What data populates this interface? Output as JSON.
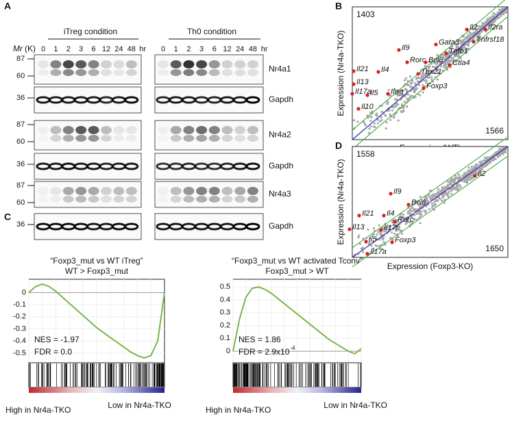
{
  "panels": {
    "A": {
      "label": "A",
      "mr": "Mr",
      "mr_unit": "(K)",
      "conditions": [
        "iTreg condition",
        "Th0 condition"
      ],
      "times": [
        "0",
        "1",
        "2",
        "3",
        "6",
        "12",
        "24",
        "48"
      ],
      "time_unit": "hr",
      "rows": [
        {
          "name": "Nr4a1",
          "markers": [
            "87",
            "60"
          ]
        },
        {
          "name": "Gapdh",
          "markers": [
            "36"
          ]
        },
        {
          "name": "Nr4a2",
          "markers": [
            "87",
            "60"
          ]
        },
        {
          "name": "Gapdh",
          "markers": [
            "36"
          ]
        },
        {
          "name": "Nr4a3",
          "markers": [
            "87",
            "60"
          ]
        },
        {
          "name": "Gapdh",
          "markers": [
            "36"
          ]
        }
      ]
    },
    "B": {
      "label": "B",
      "x_label": "Expression (WT)",
      "y_label": "Expression (Nr4a-TKO)",
      "count_top": "1403",
      "count_bottom": "1566",
      "genes": [
        "Il2",
        "Il2ra",
        "Tnfrsf18",
        "Gata3",
        "Il9",
        "Tgfb1",
        "Rorc",
        "Bcl6",
        "Ctla4",
        "Il21",
        "Il4",
        "Tbx21",
        "Il13",
        "Foxp3",
        "Il17a",
        "Il5",
        "Ifng",
        "Il10"
      ]
    },
    "C": {
      "label": "C"
    },
    "D": {
      "label": "D",
      "x_label": "Expression (Foxp3-KO)",
      "y_label": "Expression (Nr4a-TKO)",
      "count_top": "1558",
      "count_bottom": "1650",
      "genes": [
        "Il2",
        "Il9",
        "Bcl6",
        "Il21",
        "Il4",
        "Rorc",
        "Il13",
        "Il17f",
        "Foxp3",
        "Il5",
        "Il17a"
      ]
    }
  },
  "chart_data": [
    {
      "type": "line",
      "title": "“Foxp3_mut vs WT iTreg”",
      "subtitle": "WT > Foxp3_mut",
      "nes": "NES = -1.97",
      "fdr": "FDR = 0.0",
      "color": "#7ab648",
      "ylim": [
        -0.58,
        0.11
      ],
      "yticks": [
        0,
        -0.1,
        -0.2,
        -0.3,
        -0.4,
        -0.5
      ],
      "values": [
        0,
        0.05,
        0.07,
        0.05,
        0.01,
        -0.04,
        -0.09,
        -0.14,
        -0.19,
        -0.24,
        -0.29,
        -0.33,
        -0.37,
        -0.41,
        -0.45,
        -0.49,
        -0.52,
        -0.54,
        -0.52,
        -0.4,
        0
      ],
      "low_label": "Low in Nr4a-TKO",
      "high_label": "High in Nr4a-TKO"
    },
    {
      "type": "line",
      "title": "“Foxp3_mut vs WT activated Tconv”",
      "subtitle": "Foxp3_mut > WT",
      "nes": "NES = 1.86",
      "fdr": "FDR = 2.9x10",
      "fdr_exp": "-4",
      "color": "#7ab648",
      "ylim": [
        -0.09,
        0.56
      ],
      "yticks": [
        0.5,
        0.4,
        0.3,
        0.2,
        0.1,
        0
      ],
      "values": [
        0,
        0.25,
        0.42,
        0.49,
        0.5,
        0.48,
        0.45,
        0.41,
        0.37,
        0.33,
        0.29,
        0.25,
        0.21,
        0.17,
        0.13,
        0.09,
        0.06,
        0.03,
        0.0,
        -0.02,
        0.02
      ],
      "low_label": "Low in Nr4a-TKO",
      "high_label": "High in Nr4a-TKO"
    }
  ]
}
